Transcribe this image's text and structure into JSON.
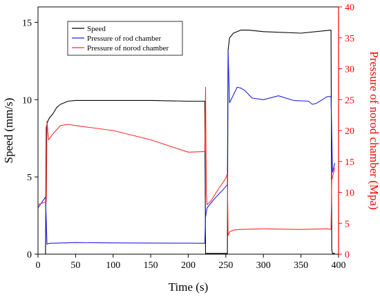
{
  "chart_data": {
    "type": "line",
    "xlabel": "Time (s)",
    "ylabel_left": "Speed (mm/s)",
    "ylabel_right": "Pressure of norod chamber (Mpa)",
    "xlim": [
      0,
      400
    ],
    "ylim_left": [
      0,
      16
    ],
    "ylim_right": [
      0,
      40
    ],
    "x_ticks": [
      0,
      50,
      100,
      150,
      200,
      250,
      300,
      350,
      400
    ],
    "y_left_ticks": [
      0,
      5,
      10,
      15
    ],
    "y_right_ticks": [
      0,
      5,
      10,
      15,
      20,
      25,
      30,
      35,
      40
    ],
    "grid": false,
    "legend_position": "top-left",
    "colors": {
      "speed": "#000000",
      "rod": "#1f1fe6",
      "norod": "#ff2a2a",
      "right_axis": "#ff0000"
    },
    "series": [
      {
        "name": "Speed",
        "axis": "left",
        "x": [
          0,
          10,
          11,
          13,
          15,
          20,
          25,
          30,
          40,
          50,
          100,
          150,
          200,
          222,
          223,
          225,
          230,
          250,
          252,
          253,
          255,
          260,
          270,
          280,
          300,
          350,
          390,
          391,
          392,
          395
        ],
        "y": [
          0,
          0,
          8.2,
          8.6,
          8.8,
          9.1,
          9.5,
          9.7,
          9.9,
          9.95,
          9.95,
          9.95,
          9.9,
          9.9,
          0.05,
          0.05,
          0.05,
          0.05,
          0.05,
          13.2,
          14.0,
          14.3,
          14.5,
          14.5,
          14.4,
          14.3,
          14.5,
          0.3,
          0.05,
          0.05
        ]
      },
      {
        "name": "Pressure of rod chamber",
        "axis": "left",
        "x": [
          0,
          10,
          12,
          15,
          50,
          100,
          150,
          200,
          222,
          223,
          225,
          235,
          245,
          252,
          253,
          255,
          260,
          265,
          270,
          275,
          285,
          300,
          320,
          340,
          360,
          365,
          370,
          385,
          390,
          392,
          395
        ],
        "y": [
          3.0,
          3.7,
          0.65,
          0.7,
          0.75,
          0.73,
          0.72,
          0.71,
          0.7,
          2.4,
          3.0,
          3.6,
          4.1,
          4.5,
          13.2,
          9.8,
          10.3,
          10.8,
          10.75,
          10.6,
          10.1,
          10.0,
          10.25,
          9.95,
          9.9,
          9.7,
          9.75,
          10.2,
          10.2,
          5.3,
          5.9
        ]
      },
      {
        "name": "Pressure of norod chamber",
        "axis": "right",
        "x": [
          0,
          11,
          12,
          14,
          20,
          30,
          40,
          50,
          100,
          150,
          200,
          222,
          223,
          224,
          225,
          230,
          240,
          250,
          252,
          253,
          255,
          260,
          270,
          300,
          350,
          385,
          390,
          391,
          395
        ],
        "y": [
          8.0,
          8.5,
          21.5,
          18.5,
          19.5,
          20.8,
          21.0,
          20.8,
          20.0,
          18.5,
          16.5,
          16.6,
          27.0,
          10.0,
          8.0,
          8.6,
          10.5,
          12.3,
          13.0,
          3.0,
          3.6,
          3.9,
          4.0,
          4.1,
          4.0,
          4.1,
          4.0,
          12.0,
          14.0
        ]
      }
    ]
  }
}
